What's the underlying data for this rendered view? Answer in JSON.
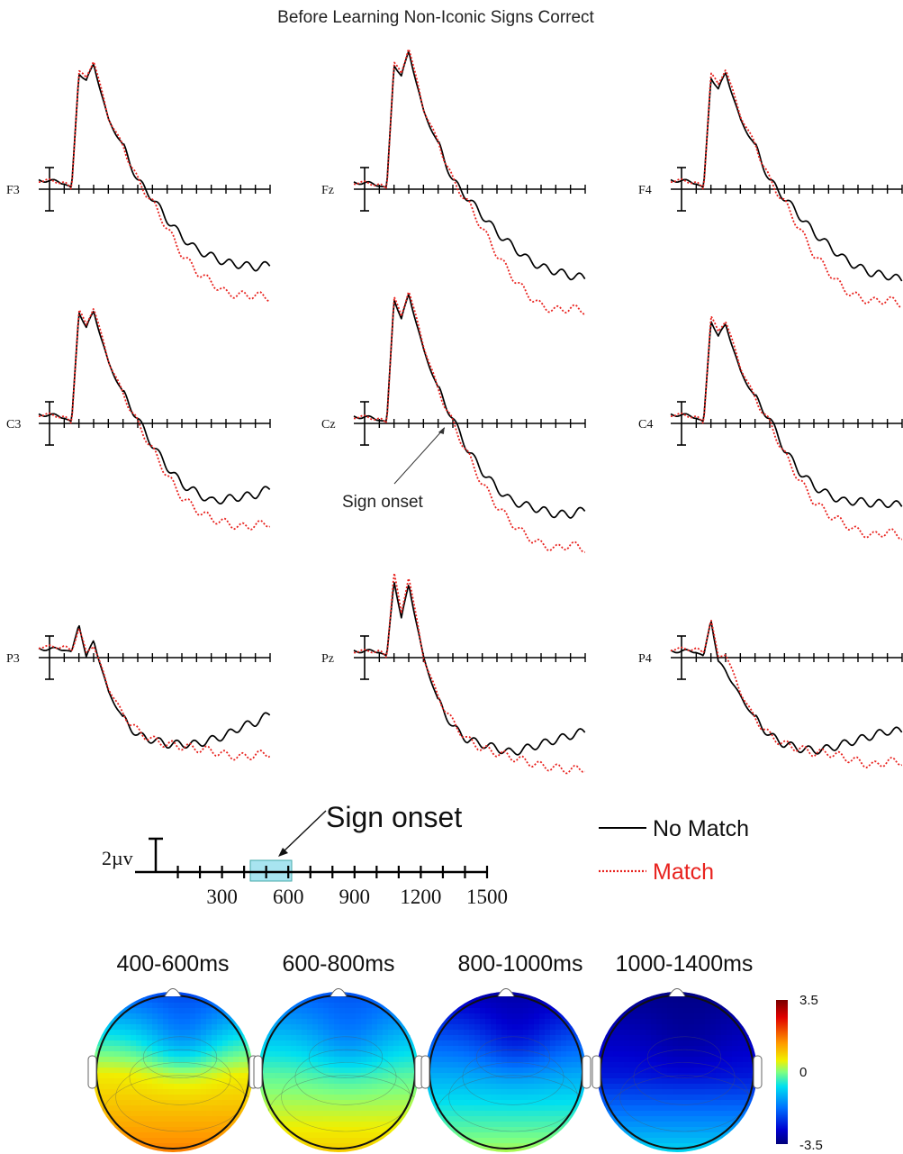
{
  "title": "Before Learning Non-Iconic Signs Correct",
  "colors": {
    "no_match": "#000000",
    "match": "#e8231f",
    "onset_box": "#a8e4f0"
  },
  "chart_data": [
    {
      "type": "line",
      "description_role": "ERP waveforms by electrode",
      "title": "Before Learning Non-Iconic Signs Correct",
      "x_unit": "ms",
      "x_ticks": [
        300,
        600,
        900,
        1200,
        1500
      ],
      "xlim": [
        0,
        1500
      ],
      "y_scale_label": "2µv",
      "y_scale_value_uv": 2,
      "annotation": "Sign onset",
      "legend": {
        "placement": "right",
        "entries": [
          "No Match",
          "Match"
        ]
      },
      "panels": [
        {
          "electrode": "F3",
          "x": [
            0,
            100,
            150,
            200,
            250,
            300,
            400,
            500,
            600,
            700,
            800,
            900,
            1000,
            1100,
            1200,
            1300,
            1400,
            1500
          ],
          "no_match": [
            0.4,
            0.3,
            0.0,
            5.4,
            5.0,
            5.8,
            3.2,
            2.0,
            0.4,
            -0.4,
            -1.4,
            -2.2,
            -2.8,
            -3.1,
            -3.4,
            -3.5,
            -3.6,
            -3.5
          ],
          "match": [
            0.4,
            0.3,
            0.0,
            5.5,
            5.1,
            6.0,
            3.3,
            2.0,
            0.4,
            -0.6,
            -1.8,
            -3.0,
            -3.8,
            -4.3,
            -4.8,
            -4.9,
            -4.9,
            -5.0
          ]
        },
        {
          "electrode": "Fz",
          "x": [
            0,
            100,
            150,
            200,
            250,
            300,
            400,
            500,
            600,
            700,
            800,
            900,
            1000,
            1100,
            1200,
            1300,
            1400,
            1500
          ],
          "no_match": [
            0.3,
            0.2,
            0.0,
            5.8,
            5.2,
            6.4,
            3.6,
            2.1,
            0.4,
            -0.4,
            -1.2,
            -2.0,
            -2.6,
            -3.2,
            -3.6,
            -3.8,
            -4.0,
            -4.1
          ],
          "match": [
            0.3,
            0.2,
            0.0,
            5.9,
            5.3,
            6.6,
            3.7,
            2.2,
            0.4,
            -0.6,
            -1.8,
            -3.0,
            -4.0,
            -4.8,
            -5.4,
            -5.6,
            -5.5,
            -5.6
          ]
        },
        {
          "electrode": "F4",
          "x": [
            0,
            100,
            150,
            200,
            250,
            300,
            400,
            500,
            600,
            700,
            800,
            900,
            1000,
            1100,
            1200,
            1300,
            1400,
            1500
          ],
          "no_match": [
            0.4,
            0.3,
            0.0,
            5.2,
            4.6,
            5.4,
            3.2,
            2.0,
            0.4,
            -0.4,
            -1.2,
            -2.0,
            -2.6,
            -3.2,
            -3.6,
            -3.9,
            -4.0,
            -4.2
          ],
          "match": [
            0.4,
            0.3,
            0.0,
            5.4,
            4.8,
            5.6,
            3.4,
            2.1,
            0.4,
            -0.6,
            -1.8,
            -3.0,
            -3.8,
            -4.6,
            -5.0,
            -5.2,
            -5.1,
            -5.3
          ]
        },
        {
          "electrode": "C3",
          "x": [
            0,
            100,
            150,
            200,
            250,
            300,
            400,
            500,
            600,
            700,
            800,
            900,
            1000,
            1100,
            1200,
            1300,
            1400,
            1500
          ],
          "no_match": [
            0.4,
            0.3,
            0.0,
            5.2,
            4.4,
            5.2,
            2.8,
            1.4,
            0.2,
            -1.0,
            -2.0,
            -2.8,
            -3.2,
            -3.6,
            -3.5,
            -3.4,
            -3.3,
            -3.0
          ],
          "match": [
            0.4,
            0.3,
            0.0,
            5.3,
            4.5,
            5.4,
            2.9,
            1.4,
            0.0,
            -1.2,
            -2.4,
            -3.4,
            -4.0,
            -4.4,
            -4.6,
            -4.8,
            -4.7,
            -4.6
          ]
        },
        {
          "electrode": "Cz",
          "x": [
            0,
            100,
            150,
            200,
            250,
            300,
            400,
            500,
            600,
            700,
            800,
            900,
            1000,
            1100,
            1200,
            1300,
            1400,
            1500
          ],
          "no_match": [
            0.3,
            0.2,
            0.0,
            5.8,
            4.8,
            6.0,
            3.4,
            1.6,
            0.2,
            -1.2,
            -2.2,
            -3.0,
            -3.6,
            -3.8,
            -4.0,
            -4.2,
            -4.2,
            -4.0
          ],
          "match": [
            0.3,
            0.2,
            0.0,
            5.9,
            4.9,
            6.2,
            3.6,
            1.6,
            0.0,
            -1.4,
            -2.8,
            -3.8,
            -4.6,
            -5.2,
            -5.6,
            -5.8,
            -5.6,
            -5.8
          ]
        },
        {
          "electrode": "C4",
          "x": [
            0,
            100,
            150,
            200,
            250,
            300,
            400,
            500,
            600,
            700,
            800,
            900,
            1000,
            1100,
            1200,
            1300,
            1400,
            1500
          ],
          "no_match": [
            0.4,
            0.3,
            0.0,
            4.8,
            4.0,
            4.6,
            2.4,
            1.2,
            0.2,
            -1.2,
            -2.2,
            -2.9,
            -3.3,
            -3.6,
            -3.6,
            -3.7,
            -3.7,
            -3.8
          ],
          "match": [
            0.4,
            0.3,
            0.0,
            5.0,
            4.2,
            4.8,
            2.6,
            1.2,
            0.0,
            -1.4,
            -2.6,
            -3.6,
            -4.2,
            -4.6,
            -5.0,
            -5.2,
            -5.0,
            -5.2
          ]
        },
        {
          "electrode": "P3",
          "x": [
            0,
            100,
            150,
            200,
            250,
            300,
            400,
            500,
            600,
            700,
            800,
            900,
            1000,
            1100,
            1200,
            1300,
            1400,
            1500
          ],
          "no_match": [
            0.4,
            0.4,
            0.2,
            1.6,
            0.0,
            0.8,
            -1.6,
            -2.8,
            -3.6,
            -3.8,
            -4.0,
            -4.0,
            -4.0,
            -3.8,
            -3.6,
            -3.2,
            -3.0,
            -2.6
          ],
          "match": [
            0.5,
            0.5,
            0.3,
            1.4,
            0.2,
            0.6,
            -1.4,
            -2.6,
            -3.4,
            -3.8,
            -4.0,
            -4.1,
            -4.2,
            -4.3,
            -4.5,
            -4.6,
            -4.5,
            -4.4
          ]
        },
        {
          "electrode": "Pz",
          "x": [
            0,
            100,
            150,
            200,
            250,
            300,
            400,
            500,
            600,
            700,
            800,
            900,
            1000,
            1100,
            1200,
            1300,
            1400,
            1500
          ],
          "no_match": [
            0.3,
            0.3,
            0.0,
            3.6,
            1.8,
            3.4,
            0.0,
            -2.0,
            -3.2,
            -3.8,
            -4.0,
            -4.2,
            -4.4,
            -4.2,
            -4.0,
            -3.8,
            -3.6,
            -3.4
          ],
          "match": [
            0.3,
            0.3,
            0.0,
            4.0,
            2.0,
            3.8,
            0.0,
            -1.8,
            -3.0,
            -3.8,
            -4.2,
            -4.4,
            -4.6,
            -4.8,
            -5.0,
            -5.1,
            -5.2,
            -5.1
          ]
        },
        {
          "electrode": "P4",
          "x": [
            0,
            100,
            150,
            200,
            250,
            300,
            400,
            500,
            600,
            700,
            800,
            900,
            1000,
            1100,
            1200,
            1300,
            1400,
            1500
          ],
          "no_match": [
            0.3,
            0.3,
            0.0,
            1.8,
            -0.2,
            -0.6,
            -1.8,
            -2.8,
            -3.6,
            -4.0,
            -4.2,
            -4.3,
            -4.2,
            -4.0,
            -3.8,
            -3.6,
            -3.4,
            -3.4
          ],
          "match": [
            0.4,
            0.4,
            0.2,
            1.8,
            0.0,
            0.2,
            -1.6,
            -2.8,
            -3.6,
            -4.0,
            -4.2,
            -4.4,
            -4.4,
            -4.6,
            -4.8,
            -5.0,
            -4.8,
            -4.8
          ]
        }
      ]
    },
    {
      "type": "heatmap",
      "description_role": "scalp topographic maps (difference)",
      "windows": [
        "400-600ms",
        "600-800ms",
        "800-1000ms",
        "1000-1400ms"
      ],
      "colorbar": {
        "min": -3.5,
        "max": 3.5,
        "tick_labels": [
          "3.5",
          "0",
          "-3.5"
        ]
      },
      "maps": [
        {
          "window": "400-600ms",
          "frontal": -1.8,
          "mid": 0.6,
          "posterior": 1.6
        },
        {
          "window": "600-800ms",
          "frontal": -1.8,
          "mid": -0.2,
          "posterior": 0.9
        },
        {
          "window": "800-1000ms",
          "frontal": -2.9,
          "mid": -1.2,
          "posterior": 0.2
        },
        {
          "window": "1000-1400ms",
          "frontal": -3.3,
          "mid": -2.6,
          "posterior": -0.8
        }
      ]
    }
  ]
}
